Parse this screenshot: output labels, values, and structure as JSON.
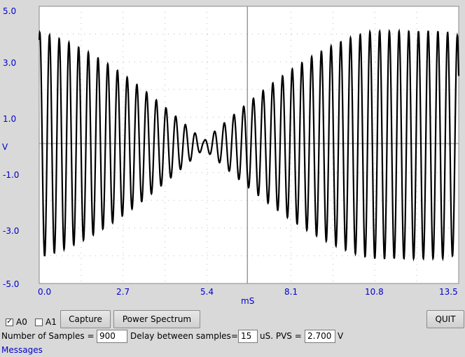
{
  "plot": {
    "y_tick_labels": [
      "5.0",
      "3.0",
      "1.0",
      "-1.0",
      "-3.0",
      "-5.0"
    ],
    "x_tick_labels": [
      "0.0",
      "2.7",
      "5.4",
      "8.1",
      "10.8",
      "13.5"
    ],
    "y_axis_label": "V",
    "x_axis_label": "mS",
    "colors": {
      "background": "#ffffff",
      "trace": "#000000",
      "labels": "#0000cc",
      "window": "#d9d9d9",
      "cursor": "#999999"
    }
  },
  "chart_data": {
    "type": "line",
    "xlabel": "mS",
    "ylabel": "V",
    "xlim": [
      0,
      13.5
    ],
    "ylim": [
      -5,
      5
    ],
    "x_ticks": [
      0,
      2.7,
      5.4,
      8.1,
      10.8,
      13.5
    ],
    "y_ticks": [
      5,
      3,
      1,
      -1,
      -3,
      -5
    ],
    "grid": true,
    "cursor_x": 6.7,
    "series": [
      {
        "values_description_free": true,
        "carrier_frequency_khz": 3.2,
        "beat_period_ms": 13.1,
        "peak_amplitude_v": 4.1,
        "envelope_minimum_ms": 5.3,
        "envelope_peak_ms": [
          0.9,
          10.5
        ]
      }
    ]
  },
  "controls": {
    "a0_label": "A0",
    "a0_checked": true,
    "a1_label": "A1",
    "a1_checked": false,
    "capture_label": "Capture",
    "power_spectrum_label": "Power Spectrum",
    "quit_label": "QUIT",
    "samples_label": "Number of Samples =",
    "samples_value": "900",
    "delay_label": "Delay between samples=",
    "delay_value": "15",
    "pvs_label": "uS. PVS =",
    "pvs_value": "2.700",
    "v_unit": "V",
    "messages_label": "Messages"
  }
}
